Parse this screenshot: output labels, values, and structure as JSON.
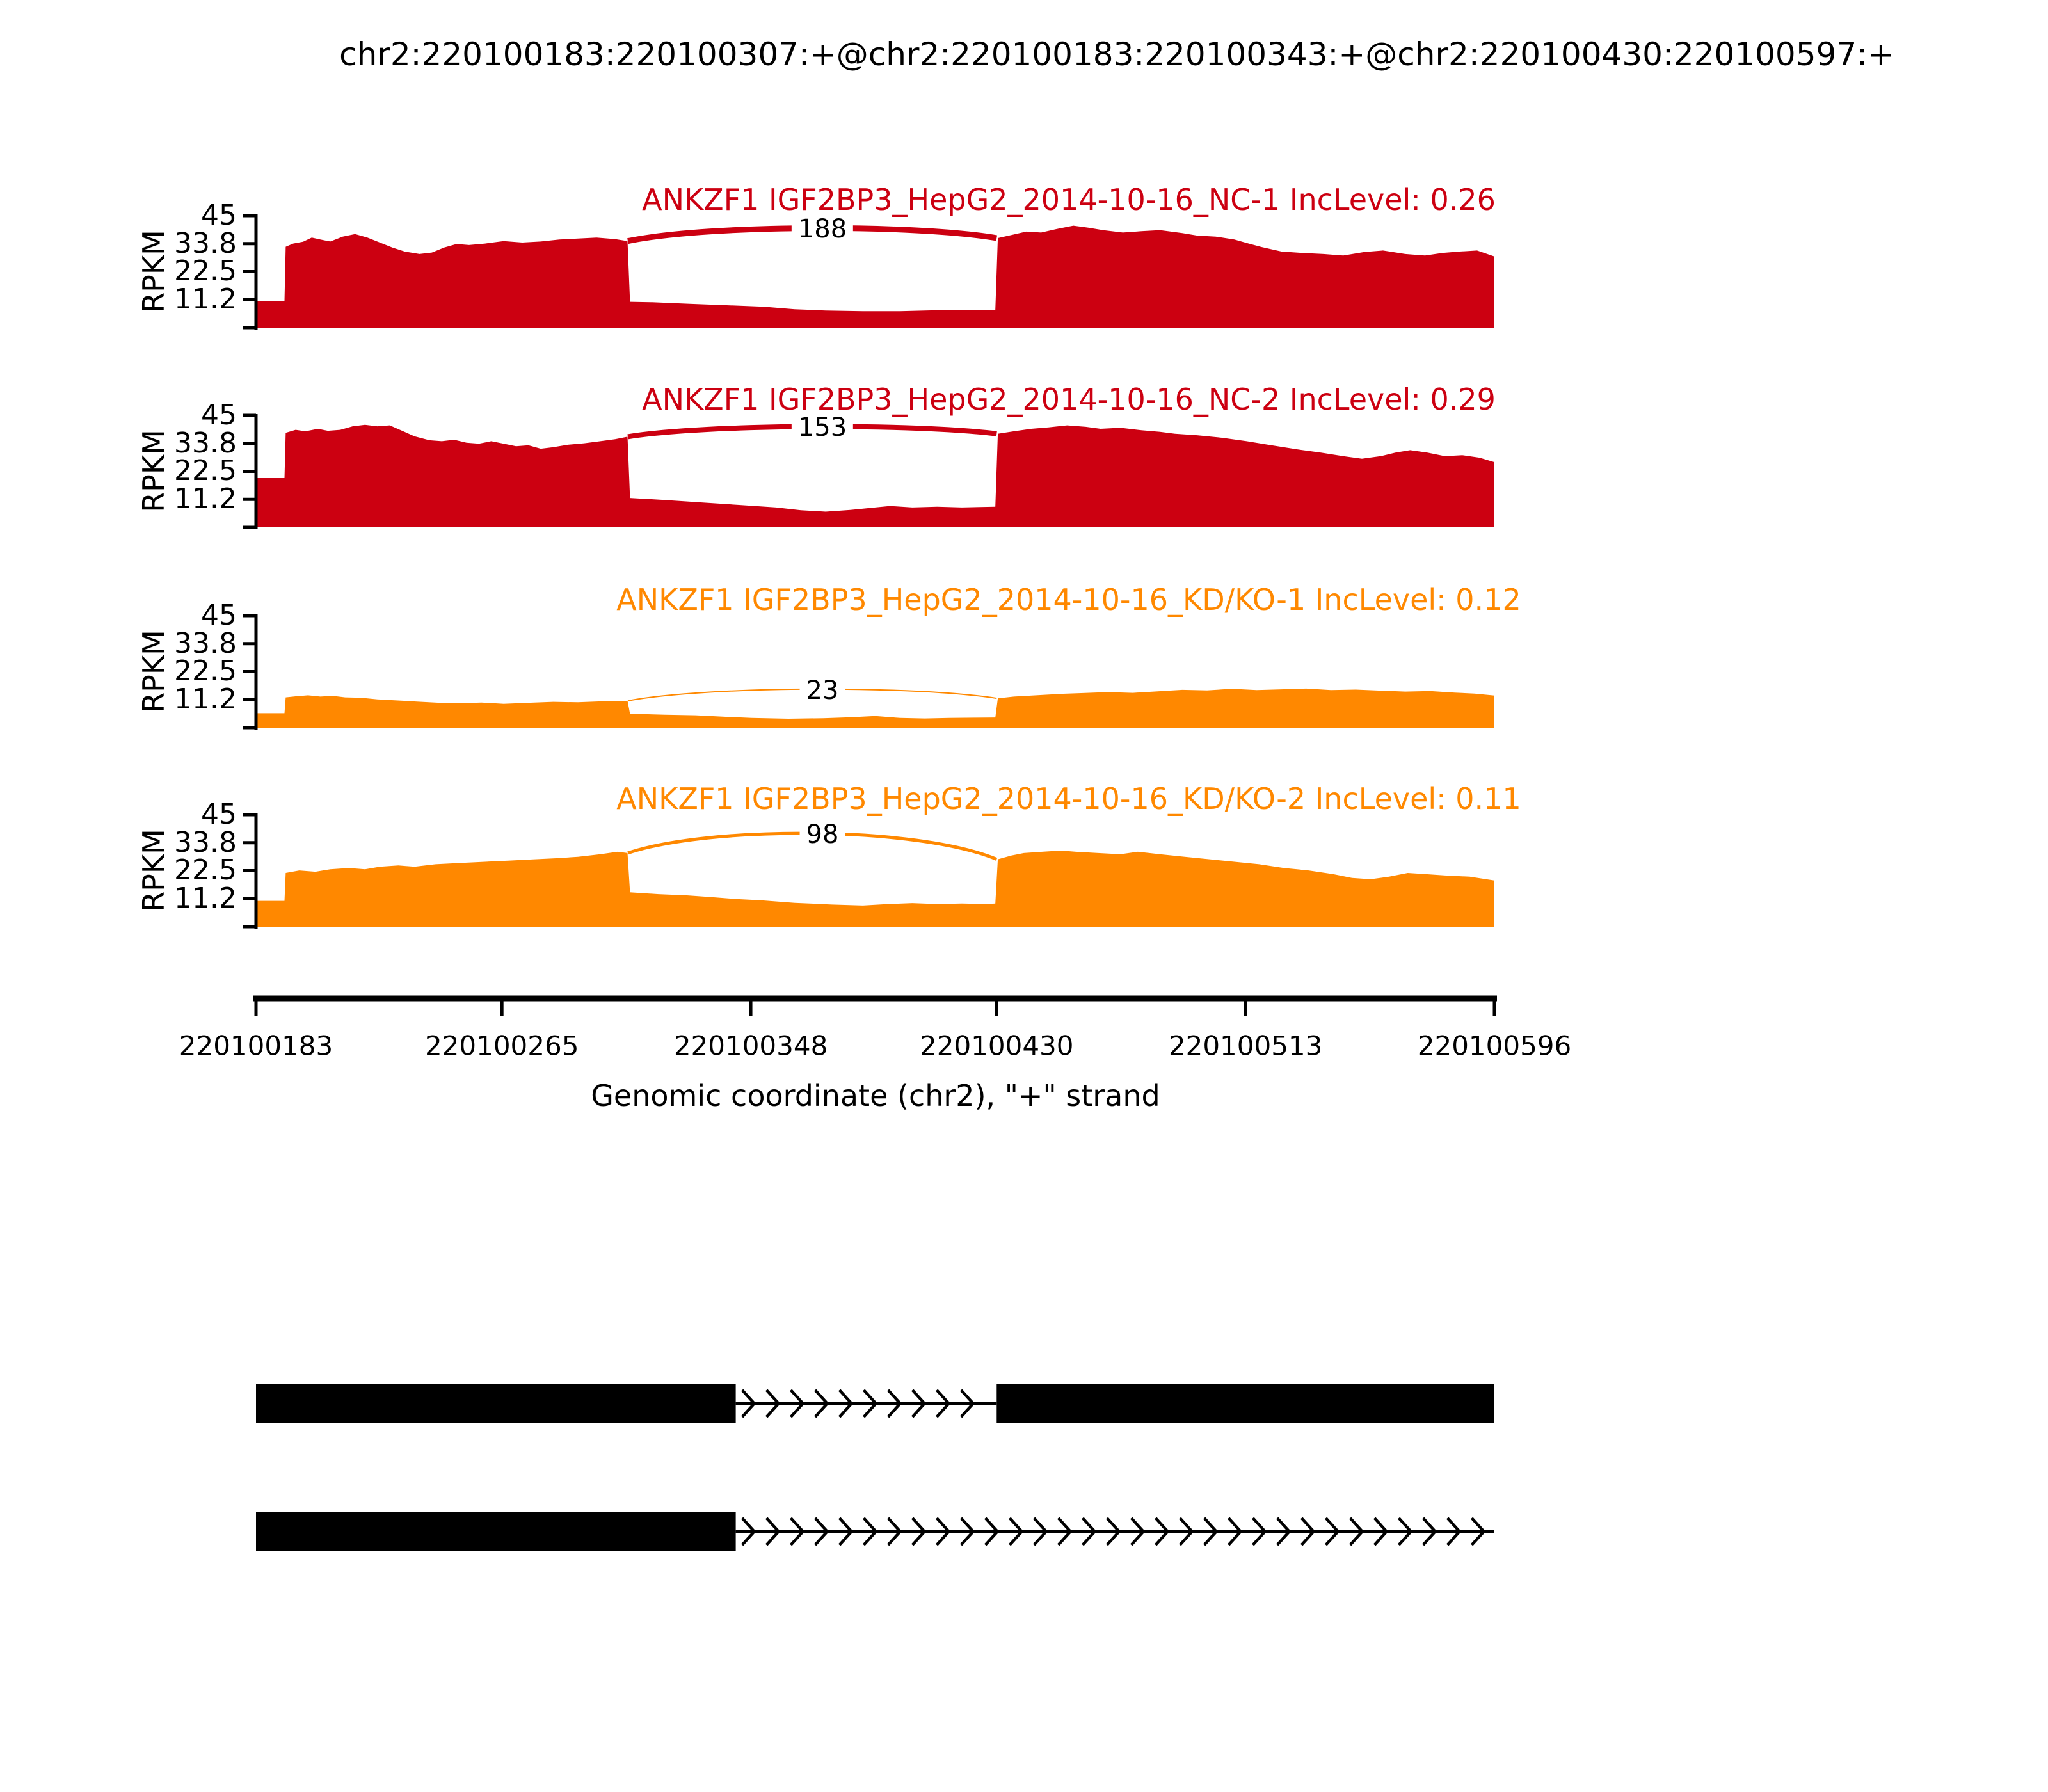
{
  "title": "chr2:220100183:220100307:+@chr2:220100183:220100343:+@chr2:220100430:220100597:+",
  "colors": {
    "nc": "#CC0011",
    "kd": "#FF8800",
    "axis": "#000000"
  },
  "chart_data": {
    "type": "area",
    "subtype": "sashimi-plot",
    "region": {
      "chrom": "chr2",
      "start": 220100183,
      "end": 220100596,
      "strand": "+"
    },
    "x_axis": {
      "label": "Genomic coordinate (chr2), \"+\" strand",
      "ticks": [
        220100183,
        220100265,
        220100348,
        220100430,
        220100513,
        220100596
      ]
    },
    "y_axis": {
      "label": "RPKM",
      "ylim": [
        0,
        45
      ],
      "tick_labels": [
        "45",
        "33.8",
        "22.5",
        "11.2"
      ],
      "tick_values": [
        45,
        33.75,
        22.5,
        11.25
      ]
    },
    "tracks": [
      {
        "label": "ANKZF1 IGF2BP3_HepG2_2014-10-16_NC-1 IncLevel: 0.26",
        "inc_level": 0.26,
        "color": "#CC0011",
        "junction": {
          "from": 220100307,
          "to": 220100430,
          "count": 188,
          "from_rpkm": 34.8,
          "to_rpkm": 36,
          "apex_rpkm": 40,
          "width": 9
        },
        "samples": [
          [
            0,
            10.8
          ],
          [
            0.023,
            10.8
          ],
          [
            0.024,
            32.5
          ],
          [
            0.03,
            33.8
          ],
          [
            0.038,
            34.5
          ],
          [
            0.045,
            36.2
          ],
          [
            0.052,
            35.4
          ],
          [
            0.06,
            34.6
          ],
          [
            0.07,
            36.6
          ],
          [
            0.08,
            37.6
          ],
          [
            0.09,
            36.2
          ],
          [
            0.1,
            34.2
          ],
          [
            0.11,
            32.2
          ],
          [
            0.12,
            30.6
          ],
          [
            0.132,
            29.6
          ],
          [
            0.142,
            30.2
          ],
          [
            0.152,
            32.2
          ],
          [
            0.162,
            33.6
          ],
          [
            0.172,
            33.2
          ],
          [
            0.185,
            33.8
          ],
          [
            0.2,
            34.8
          ],
          [
            0.215,
            34.2
          ],
          [
            0.23,
            34.6
          ],
          [
            0.245,
            35.4
          ],
          [
            0.26,
            35.8
          ],
          [
            0.275,
            36.2
          ],
          [
            0.29,
            35.6
          ],
          [
            0.3,
            34.8
          ],
          [
            0.302,
            10.4
          ],
          [
            0.32,
            10.2
          ],
          [
            0.35,
            9.6
          ],
          [
            0.38,
            9
          ],
          [
            0.41,
            8.4
          ],
          [
            0.435,
            7.4
          ],
          [
            0.46,
            6.9
          ],
          [
            0.49,
            6.6
          ],
          [
            0.52,
            6.6
          ],
          [
            0.55,
            7
          ],
          [
            0.58,
            7.1
          ],
          [
            0.597,
            7.2
          ],
          [
            0.599,
            36
          ],
          [
            0.61,
            37.2
          ],
          [
            0.622,
            38.6
          ],
          [
            0.634,
            38.2
          ],
          [
            0.648,
            39.8
          ],
          [
            0.66,
            41
          ],
          [
            0.672,
            40.2
          ],
          [
            0.684,
            39.2
          ],
          [
            0.7,
            38.2
          ],
          [
            0.716,
            38.8
          ],
          [
            0.73,
            39.2
          ],
          [
            0.748,
            38
          ],
          [
            0.76,
            37
          ],
          [
            0.775,
            36.6
          ],
          [
            0.79,
            35.4
          ],
          [
            0.8,
            34
          ],
          [
            0.812,
            32.4
          ],
          [
            0.828,
            30.6
          ],
          [
            0.845,
            30
          ],
          [
            0.862,
            29.6
          ],
          [
            0.878,
            29
          ],
          [
            0.895,
            30.4
          ],
          [
            0.91,
            31
          ],
          [
            0.928,
            29.6
          ],
          [
            0.944,
            29
          ],
          [
            0.958,
            30
          ],
          [
            0.972,
            30.6
          ],
          [
            0.986,
            31
          ],
          [
            1,
            28.6
          ]
        ]
      },
      {
        "label": "ANKZF1 IGF2BP3_HepG2_2014-10-16_NC-2 IncLevel: 0.29",
        "inc_level": 0.29,
        "color": "#CC0011",
        "junction": {
          "from": 220100307,
          "to": 220100430,
          "count": 153,
          "from_rpkm": 36.4,
          "to_rpkm": 37.6,
          "apex_rpkm": 40.5,
          "width": 8
        },
        "samples": [
          [
            0,
            19.8
          ],
          [
            0.023,
            19.8
          ],
          [
            0.024,
            38
          ],
          [
            0.032,
            39.2
          ],
          [
            0.04,
            38.6
          ],
          [
            0.05,
            39.6
          ],
          [
            0.058,
            38.8
          ],
          [
            0.068,
            39.2
          ],
          [
            0.078,
            40.6
          ],
          [
            0.088,
            41.2
          ],
          [
            0.098,
            40.6
          ],
          [
            0.108,
            41
          ],
          [
            0.118,
            38.8
          ],
          [
            0.128,
            36.6
          ],
          [
            0.14,
            35
          ],
          [
            0.15,
            34.6
          ],
          [
            0.16,
            35.2
          ],
          [
            0.17,
            34
          ],
          [
            0.18,
            33.6
          ],
          [
            0.19,
            34.6
          ],
          [
            0.2,
            33.6
          ],
          [
            0.21,
            32.6
          ],
          [
            0.22,
            33
          ],
          [
            0.23,
            31.6
          ],
          [
            0.24,
            32.2
          ],
          [
            0.252,
            33.2
          ],
          [
            0.265,
            33.8
          ],
          [
            0.278,
            34.6
          ],
          [
            0.29,
            35.4
          ],
          [
            0.3,
            36.4
          ],
          [
            0.302,
            11.8
          ],
          [
            0.33,
            11
          ],
          [
            0.36,
            10
          ],
          [
            0.39,
            9
          ],
          [
            0.42,
            8
          ],
          [
            0.44,
            6.9
          ],
          [
            0.46,
            6.3
          ],
          [
            0.48,
            7
          ],
          [
            0.5,
            8
          ],
          [
            0.512,
            8.6
          ],
          [
            0.53,
            8
          ],
          [
            0.55,
            8.3
          ],
          [
            0.57,
            8
          ],
          [
            0.597,
            8.3
          ],
          [
            0.599,
            37.6
          ],
          [
            0.612,
            38.6
          ],
          [
            0.626,
            39.6
          ],
          [
            0.64,
            40.2
          ],
          [
            0.655,
            41
          ],
          [
            0.67,
            40.4
          ],
          [
            0.682,
            39.6
          ],
          [
            0.698,
            40
          ],
          [
            0.715,
            39
          ],
          [
            0.73,
            38.4
          ],
          [
            0.742,
            37.6
          ],
          [
            0.76,
            37
          ],
          [
            0.78,
            36
          ],
          [
            0.8,
            34.6
          ],
          [
            0.82,
            33
          ],
          [
            0.84,
            31.4
          ],
          [
            0.86,
            30
          ],
          [
            0.878,
            28.6
          ],
          [
            0.893,
            27.6
          ],
          [
            0.908,
            28.6
          ],
          [
            0.92,
            30
          ],
          [
            0.932,
            31
          ],
          [
            0.946,
            30
          ],
          [
            0.96,
            28.6
          ],
          [
            0.974,
            29
          ],
          [
            0.988,
            28
          ],
          [
            1,
            26.2
          ]
        ]
      },
      {
        "label": "ANKZF1 IGF2BP3_HepG2_2014-10-16_KD/KO-1 IncLevel: 0.12",
        "inc_level": 0.12,
        "color": "#FF8800",
        "junction": {
          "from": 220100307,
          "to": 220100430,
          "count": 23,
          "from_rpkm": 10.8,
          "to_rpkm": 11.8,
          "apex_rpkm": 15.5,
          "width": 2
        },
        "samples": [
          [
            0,
            5.8
          ],
          [
            0.023,
            5.8
          ],
          [
            0.024,
            12.2
          ],
          [
            0.032,
            12.6
          ],
          [
            0.042,
            13
          ],
          [
            0.052,
            12.5
          ],
          [
            0.062,
            12.8
          ],
          [
            0.072,
            12.2
          ],
          [
            0.085,
            12
          ],
          [
            0.098,
            11.4
          ],
          [
            0.112,
            11
          ],
          [
            0.13,
            10.5
          ],
          [
            0.148,
            10
          ],
          [
            0.165,
            9.8
          ],
          [
            0.182,
            10.1
          ],
          [
            0.2,
            9.6
          ],
          [
            0.22,
            10
          ],
          [
            0.24,
            10.4
          ],
          [
            0.26,
            10.2
          ],
          [
            0.28,
            10.6
          ],
          [
            0.3,
            10.8
          ],
          [
            0.302,
            5.6
          ],
          [
            0.33,
            5.2
          ],
          [
            0.355,
            5
          ],
          [
            0.378,
            4.4
          ],
          [
            0.4,
            3.9
          ],
          [
            0.43,
            3.6
          ],
          [
            0.458,
            3.8
          ],
          [
            0.48,
            4.2
          ],
          [
            0.5,
            4.7
          ],
          [
            0.52,
            3.9
          ],
          [
            0.54,
            3.7
          ],
          [
            0.56,
            3.9
          ],
          [
            0.58,
            4
          ],
          [
            0.597,
            4.1
          ],
          [
            0.599,
            11.8
          ],
          [
            0.612,
            12.5
          ],
          [
            0.63,
            13
          ],
          [
            0.65,
            13.6
          ],
          [
            0.668,
            13.9
          ],
          [
            0.688,
            14.3
          ],
          [
            0.708,
            14
          ],
          [
            0.728,
            14.6
          ],
          [
            0.748,
            15.2
          ],
          [
            0.768,
            15
          ],
          [
            0.788,
            15.6
          ],
          [
            0.808,
            15.1
          ],
          [
            0.828,
            15.4
          ],
          [
            0.848,
            15.7
          ],
          [
            0.868,
            15.1
          ],
          [
            0.888,
            15.3
          ],
          [
            0.908,
            14.9
          ],
          [
            0.928,
            14.5
          ],
          [
            0.948,
            14.7
          ],
          [
            0.968,
            14.1
          ],
          [
            0.984,
            13.7
          ],
          [
            1,
            12.9
          ]
        ]
      },
      {
        "label": "ANKZF1 IGF2BP3_HepG2_2014-10-16_KD/KO-2 IncLevel: 0.11",
        "inc_level": 0.11,
        "color": "#FF8800",
        "junction": {
          "from": 220100307,
          "to": 220100430,
          "count": 98,
          "from_rpkm": 29.6,
          "to_rpkm": 27.1,
          "apex_rpkm": 37.5,
          "width": 5
        },
        "samples": [
          [
            0,
            10.4
          ],
          [
            0.023,
            10.4
          ],
          [
            0.024,
            21.6
          ],
          [
            0.035,
            22.6
          ],
          [
            0.048,
            22.1
          ],
          [
            0.06,
            23.1
          ],
          [
            0.075,
            23.6
          ],
          [
            0.088,
            23.1
          ],
          [
            0.1,
            24.1
          ],
          [
            0.115,
            24.6
          ],
          [
            0.128,
            24.1
          ],
          [
            0.145,
            25.1
          ],
          [
            0.165,
            25.6
          ],
          [
            0.185,
            26.1
          ],
          [
            0.205,
            26.6
          ],
          [
            0.225,
            27.1
          ],
          [
            0.245,
            27.6
          ],
          [
            0.26,
            28.1
          ],
          [
            0.278,
            29.1
          ],
          [
            0.292,
            30.1
          ],
          [
            0.3,
            29.6
          ],
          [
            0.302,
            13.8
          ],
          [
            0.325,
            13.1
          ],
          [
            0.348,
            12.6
          ],
          [
            0.368,
            11.9
          ],
          [
            0.388,
            11.1
          ],
          [
            0.408,
            10.6
          ],
          [
            0.435,
            9.6
          ],
          [
            0.465,
            8.9
          ],
          [
            0.49,
            8.5
          ],
          [
            0.51,
            9.1
          ],
          [
            0.53,
            9.5
          ],
          [
            0.55,
            9.1
          ],
          [
            0.57,
            9.3
          ],
          [
            0.59,
            9.1
          ],
          [
            0.597,
            9.3
          ],
          [
            0.599,
            27.1
          ],
          [
            0.61,
            28.6
          ],
          [
            0.62,
            29.6
          ],
          [
            0.635,
            30.1
          ],
          [
            0.65,
            30.6
          ],
          [
            0.662,
            30.1
          ],
          [
            0.68,
            29.6
          ],
          [
            0.698,
            29.1
          ],
          [
            0.712,
            30.1
          ],
          [
            0.73,
            29.1
          ],
          [
            0.75,
            28.1
          ],
          [
            0.77,
            27.1
          ],
          [
            0.79,
            26.1
          ],
          [
            0.81,
            25.1
          ],
          [
            0.83,
            23.6
          ],
          [
            0.85,
            22.6
          ],
          [
            0.87,
            21.1
          ],
          [
            0.885,
            19.6
          ],
          [
            0.9,
            19.1
          ],
          [
            0.915,
            20.1
          ],
          [
            0.93,
            21.6
          ],
          [
            0.945,
            21.1
          ],
          [
            0.96,
            20.6
          ],
          [
            0.98,
            20.1
          ],
          [
            1,
            18.6
          ]
        ]
      }
    ],
    "transcripts": [
      {
        "exons": [
          [
            220100183,
            220100343
          ],
          [
            220100430,
            220100596
          ]
        ],
        "arrow_span": [
          220100343,
          220100430
        ]
      },
      {
        "exons": [
          [
            220100183,
            220100343
          ]
        ],
        "arrow_span": [
          220100343,
          220100596
        ]
      }
    ]
  }
}
